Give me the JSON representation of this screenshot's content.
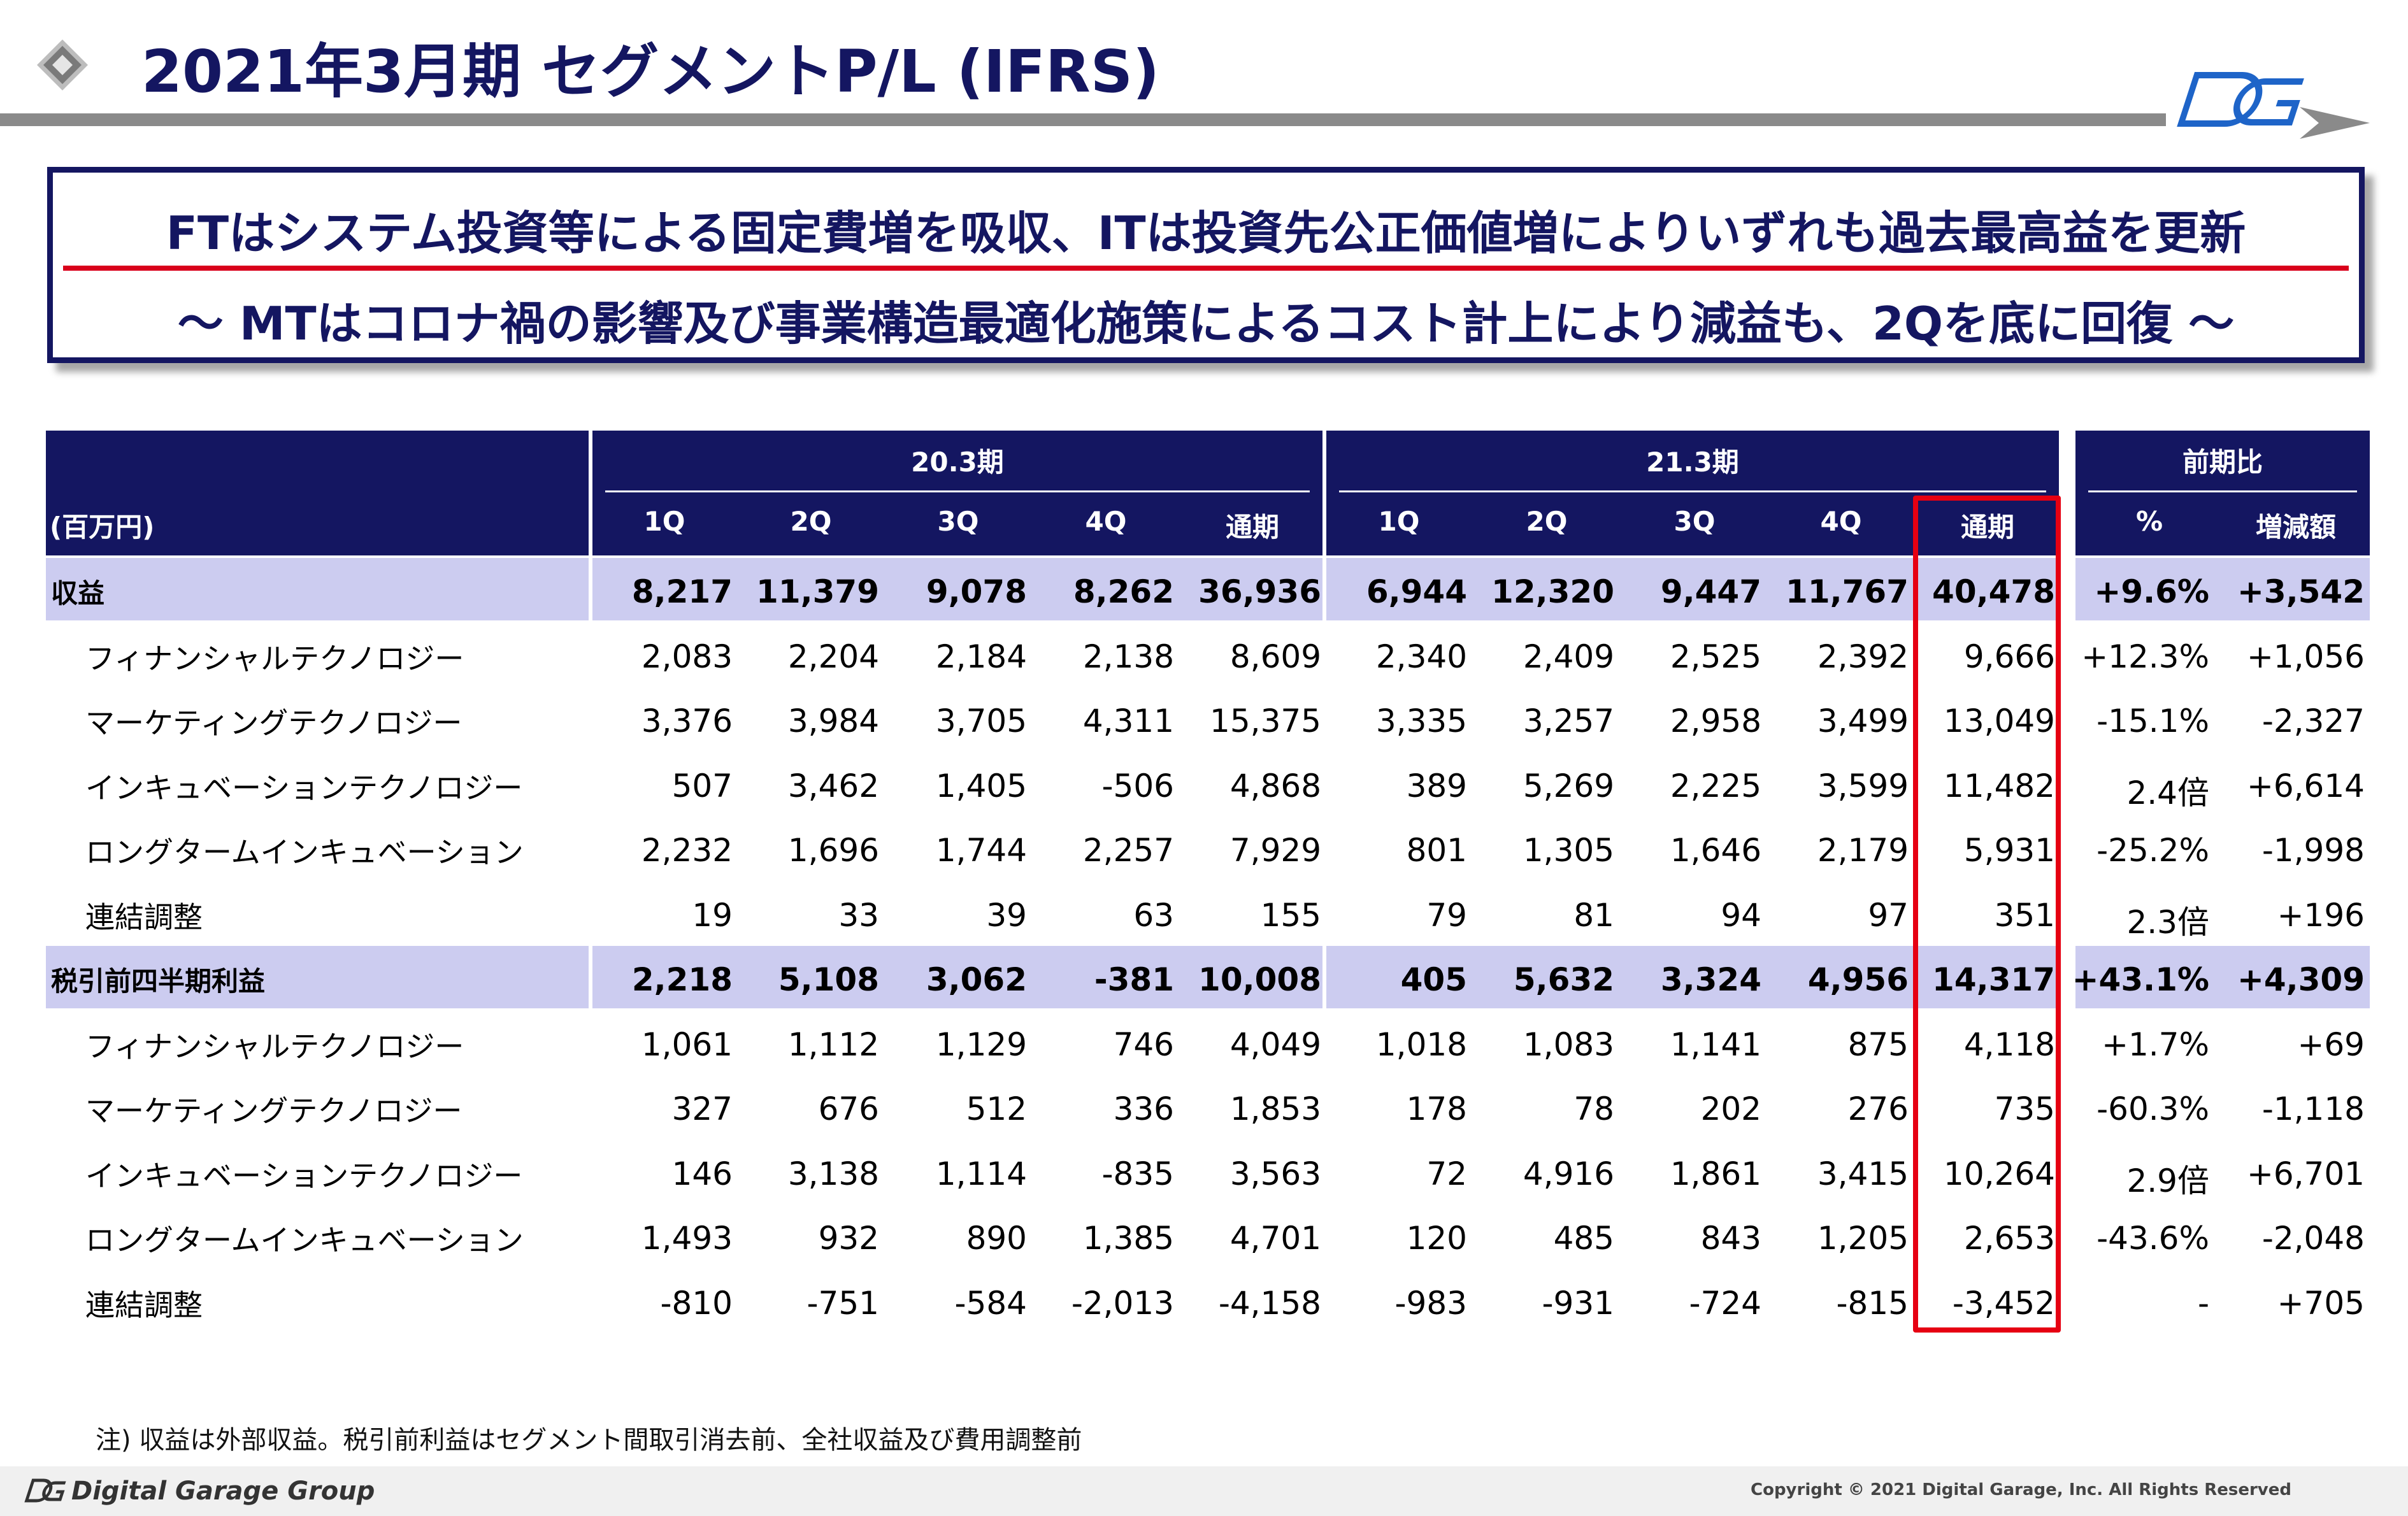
{
  "page": {
    "title": "2021年3月期 セグメントP/L (IFRS)",
    "headline_1": "FTはシステム投資等による固定費増を吸収、ITは投資先公正価値増によりいずれも過去最高益を更新",
    "headline_2": "～ MTはコロナ禍の影響及び事業構造最適化施策によるコスト計上により減益も、2Qを底に回復 ～",
    "note": "注) 収益は外部収益。税引前利益はセグメント間取引消去前、全社収益及び費用調整前",
    "footer_brand": "Digital Garage Group",
    "copyright": "Copyright © 2021 Digital Garage, Inc. All Rights Reserved",
    "colors": {
      "navy": "#141661",
      "band": "#ccccf0",
      "highlight": "#e60012",
      "rule": "#8a8a8a"
    },
    "icons": [
      "diamond-bullet-icon",
      "dg-logo-icon",
      "arrow-right-icon",
      "dg-footer-logo-icon"
    ]
  },
  "table": {
    "unit_label": "(百万円)",
    "groups": [
      "20.3期",
      "21.3期",
      "前期比"
    ],
    "columns": [
      "1Q",
      "2Q",
      "3Q",
      "4Q",
      "通期",
      "1Q",
      "2Q",
      "3Q",
      "4Q",
      "通期",
      "%",
      "増減額"
    ],
    "rows": [
      {
        "label": "収益",
        "bold": true,
        "values": [
          "8,217",
          "11,379",
          "9,078",
          "8,262",
          "36,936",
          "6,944",
          "12,320",
          "9,447",
          "11,767",
          "40,478",
          "+9.6%",
          "+3,542"
        ]
      },
      {
        "label": "フィナンシャルテクノロジー",
        "bold": false,
        "values": [
          "2,083",
          "2,204",
          "2,184",
          "2,138",
          "8,609",
          "2,340",
          "2,409",
          "2,525",
          "2,392",
          "9,666",
          "+12.3%",
          "+1,056"
        ]
      },
      {
        "label": "マーケティングテクノロジー",
        "bold": false,
        "values": [
          "3,376",
          "3,984",
          "3,705",
          "4,311",
          "15,375",
          "3,335",
          "3,257",
          "2,958",
          "3,499",
          "13,049",
          "-15.1%",
          "-2,327"
        ]
      },
      {
        "label": "インキュベーションテクノロジー",
        "bold": false,
        "values": [
          "507",
          "3,462",
          "1,405",
          "-506",
          "4,868",
          "389",
          "5,269",
          "2,225",
          "3,599",
          "11,482",
          "2.4倍",
          "+6,614"
        ]
      },
      {
        "label": "ロングタームインキュベーション",
        "bold": false,
        "values": [
          "2,232",
          "1,696",
          "1,744",
          "2,257",
          "7,929",
          "801",
          "1,305",
          "1,646",
          "2,179",
          "5,931",
          "-25.2%",
          "-1,998"
        ]
      },
      {
        "label": "連結調整",
        "bold": false,
        "values": [
          "19",
          "33",
          "39",
          "63",
          "155",
          "79",
          "81",
          "94",
          "97",
          "351",
          "2.3倍",
          "+196"
        ]
      },
      {
        "label": "税引前四半期利益",
        "bold": true,
        "values": [
          "2,218",
          "5,108",
          "3,062",
          "-381",
          "10,008",
          "405",
          "5,632",
          "3,324",
          "4,956",
          "14,317",
          "+43.1%",
          "+4,309"
        ]
      },
      {
        "label": "フィナンシャルテクノロジー",
        "bold": false,
        "values": [
          "1,061",
          "1,112",
          "1,129",
          "746",
          "4,049",
          "1,018",
          "1,083",
          "1,141",
          "875",
          "4,118",
          "+1.7%",
          "+69"
        ]
      },
      {
        "label": "マーケティングテクノロジー",
        "bold": false,
        "values": [
          "327",
          "676",
          "512",
          "336",
          "1,853",
          "178",
          "78",
          "202",
          "276",
          "735",
          "-60.3%",
          "-1,118"
        ]
      },
      {
        "label": "インキュベーションテクノロジー",
        "bold": false,
        "values": [
          "146",
          "3,138",
          "1,114",
          "-835",
          "3,563",
          "72",
          "4,916",
          "1,861",
          "3,415",
          "10,264",
          "2.9倍",
          "+6,701"
        ]
      },
      {
        "label": "ロングタームインキュベーション",
        "bold": false,
        "values": [
          "1,493",
          "932",
          "890",
          "1,385",
          "4,701",
          "120",
          "485",
          "843",
          "1,205",
          "2,653",
          "-43.6%",
          "-2,048"
        ]
      },
      {
        "label": "連結調整",
        "bold": false,
        "values": [
          "-810",
          "-751",
          "-584",
          "-2,013",
          "-4,158",
          "-983",
          "-931",
          "-724",
          "-815",
          "-3,452",
          "-",
          "+705"
        ]
      }
    ]
  }
}
